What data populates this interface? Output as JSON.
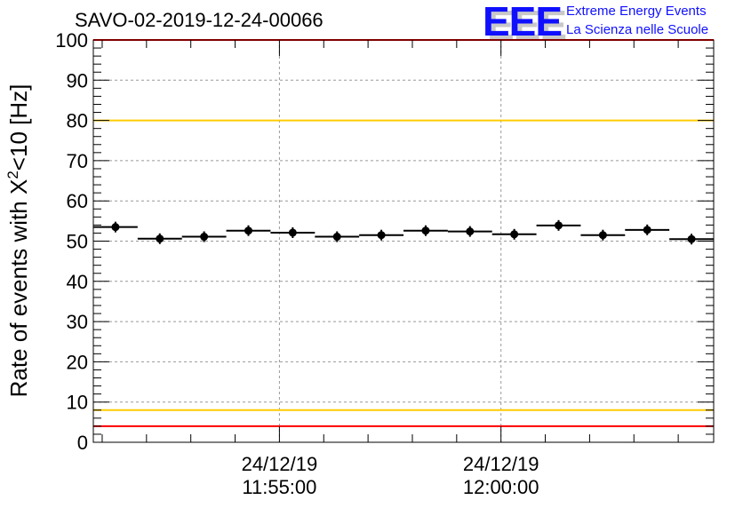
{
  "chart_data": {
    "type": "scatter",
    "title": "SAVO-02-2019-12-24-00066",
    "xlabel": "",
    "ylabel": "Rate of events with X²<10 [Hz]",
    "ylabel_parts": {
      "pre": "Rate of events with X",
      "sup": "2",
      "post": "<10 [Hz]"
    },
    "ylim": [
      0,
      100
    ],
    "xlim": [
      "11:50:48",
      "12:04:48"
    ],
    "bin_width_seconds": 60,
    "yticks": [
      "0",
      "10",
      "20",
      "30",
      "40",
      "50",
      "60",
      "70",
      "80",
      "90",
      "100"
    ],
    "xticks": [
      {
        "date": "24/12/19",
        "time": "11:55:00"
      },
      {
        "date": "24/12/19",
        "time": "12:00:00"
      }
    ],
    "grid": true,
    "x": [
      "11:51:18",
      "11:52:18",
      "11:53:18",
      "11:54:18",
      "11:55:18",
      "11:56:18",
      "11:57:18",
      "11:58:18",
      "11:59:18",
      "12:00:18",
      "12:01:18",
      "12:02:18",
      "12:03:18",
      "12:04:18"
    ],
    "values": [
      53.5,
      50.6,
      51.1,
      52.6,
      52.1,
      51.1,
      51.5,
      52.6,
      52.4,
      51.7,
      53.9,
      51.5,
      52.8,
      50.5
    ],
    "reference_lines": [
      {
        "value": 100,
        "color": "#ff0000"
      },
      {
        "value": 80,
        "color": "#ffcc00"
      },
      {
        "value": 8,
        "color": "#ffcc00"
      },
      {
        "value": 4,
        "color": "#ff0000"
      }
    ]
  },
  "logo": {
    "mark": "EEE",
    "line1": "Extreme Energy Events",
    "line2": "La Scienza nelle Scuole"
  }
}
